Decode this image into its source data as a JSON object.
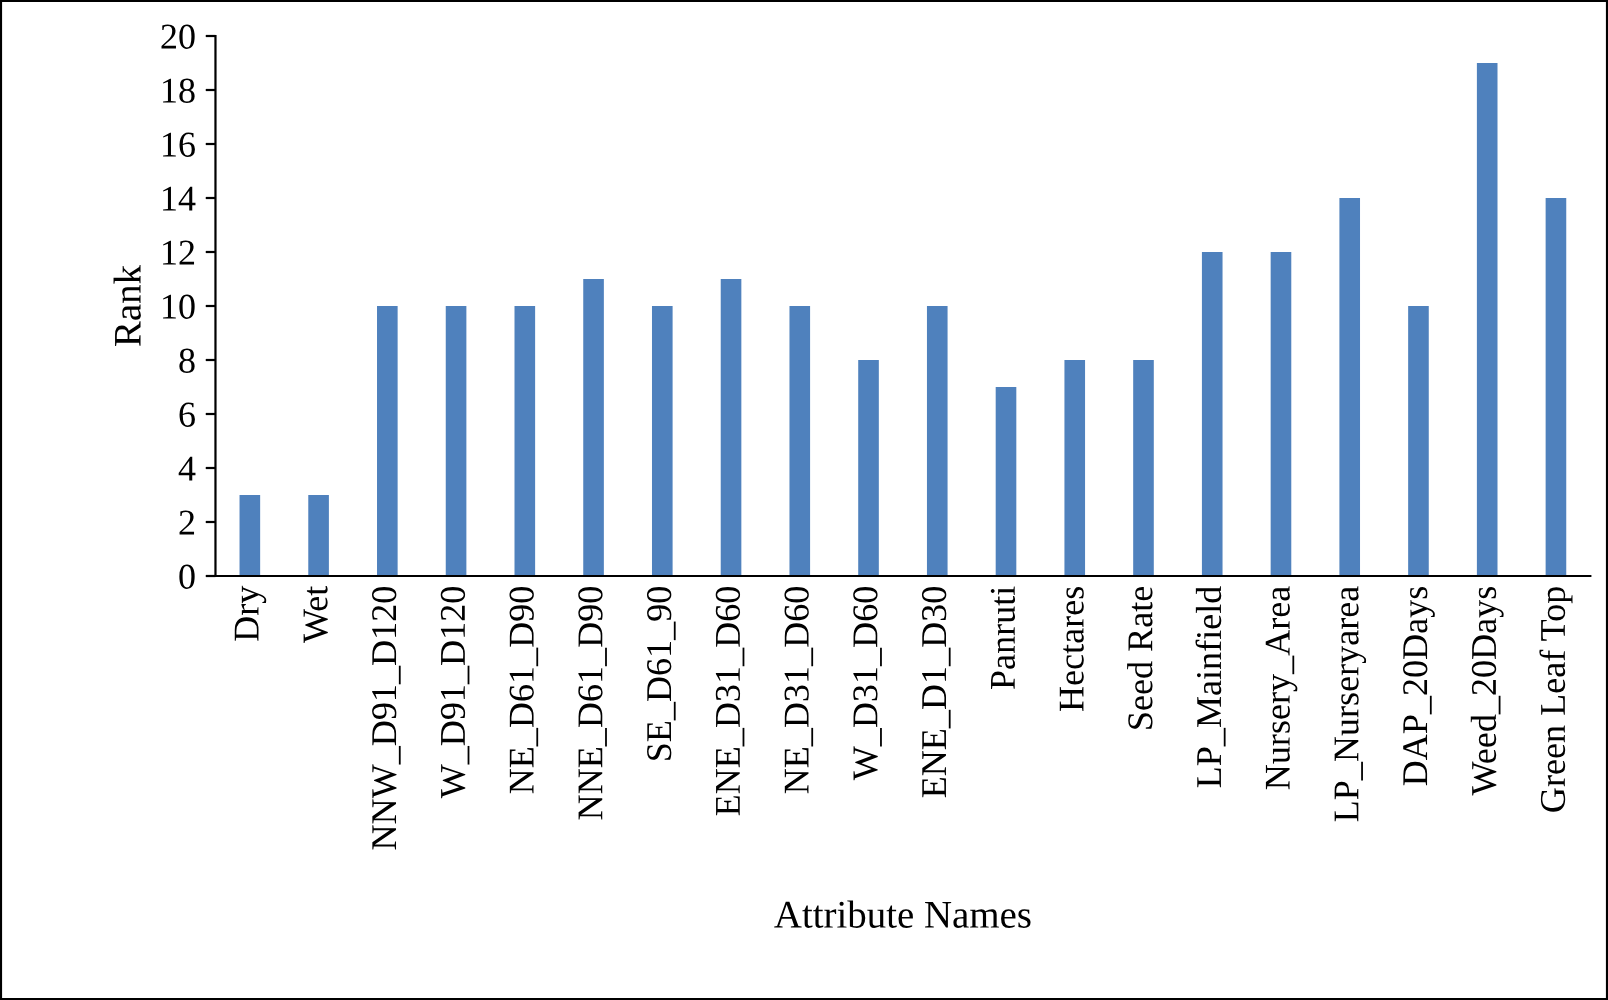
{
  "chart_data": {
    "type": "bar",
    "xlabel": "Attribute Names",
    "ylabel": "Rank",
    "categories": [
      "Dry",
      "Wet",
      "NNW_D91_D120",
      "W_D91_D120",
      "NE_D61_D90",
      "NNE_D61_D90",
      "SE_D61_90",
      "ENE_D31_D60",
      "NE_D31_D60",
      "W_D31_D60",
      "ENE_D1_D30",
      "Panruti",
      "Hectares",
      "Seed Rate",
      "LP_Mainfield",
      "Nursery_Area",
      "LP_Nurseryarea",
      "DAP_20Days",
      "Weed_20Days",
      "Green Leaf Top"
    ],
    "values": [
      3,
      3,
      10,
      10,
      10,
      11,
      10,
      11,
      10,
      8,
      10,
      7,
      8,
      8,
      12,
      12,
      14,
      10,
      19,
      14
    ],
    "color": "#4f81bd",
    "ylim": [
      0,
      20
    ],
    "yticks": [
      0,
      2,
      4,
      6,
      8,
      10,
      12,
      14,
      16,
      18,
      20
    ],
    "grid": false,
    "legend": false
  }
}
